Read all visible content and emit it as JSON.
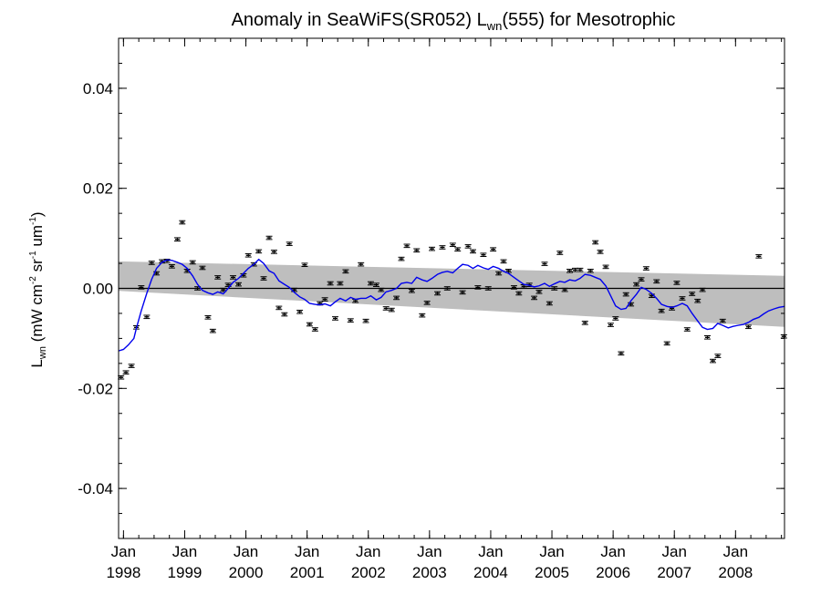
{
  "chart_data": {
    "type": "scatter",
    "title": "Anomaly in SeaWiFS(SR052) L",
    "title_sub": "wn",
    "title_suffix": "(555) for Mesotrophic",
    "ylabel": {
      "base": "L",
      "base_sub": "wn",
      "unit_open": " (mW cm",
      "sup1": "-2",
      "mid": " sr",
      "sup2": "-1",
      "end": " um",
      "sup3": "-1",
      "close": ")"
    },
    "x_range": [
      1997.92,
      2008.8
    ],
    "ylim": [
      -0.05,
      0.05
    ],
    "y_ticks": [
      {
        "value": 0.04,
        "label": "0.04"
      },
      {
        "value": 0.02,
        "label": "0.02"
      },
      {
        "value": 0.0,
        "label": "0.00"
      },
      {
        "value": -0.02,
        "label": "-0.02"
      },
      {
        "value": -0.04,
        "label": "-0.04"
      }
    ],
    "x_ticks": [
      {
        "value": 1998,
        "month": "Jan",
        "year": "1998"
      },
      {
        "value": 1999,
        "month": "Jan",
        "year": "1999"
      },
      {
        "value": 2000,
        "month": "Jan",
        "year": "2000"
      },
      {
        "value": 2001,
        "month": "Jan",
        "year": "2001"
      },
      {
        "value": 2002,
        "month": "Jan",
        "year": "2002"
      },
      {
        "value": 2003,
        "month": "Jan",
        "year": "2003"
      },
      {
        "value": 2004,
        "month": "Jan",
        "year": "2004"
      },
      {
        "value": 2005,
        "month": "Jan",
        "year": "2005"
      },
      {
        "value": 2006,
        "month": "Jan",
        "year": "2006"
      },
      {
        "value": 2007,
        "month": "Jan",
        "year": "2007"
      },
      {
        "value": 2008,
        "month": "Jan",
        "year": "2008"
      }
    ],
    "zero_line": 0.0,
    "confidence_band": {
      "start": {
        "x": 1997.92,
        "lower": -0.0005,
        "upper": 0.0054
      },
      "end": {
        "x": 2008.8,
        "lower": -0.0077,
        "upper": 0.0025
      },
      "color": "#bebebe"
    },
    "points": [
      [
        1997.96,
        -0.0178
      ],
      [
        1998.04,
        -0.0168
      ],
      [
        1998.13,
        -0.0155
      ],
      [
        1998.21,
        -0.0078
      ],
      [
        1998.29,
        0.0002
      ],
      [
        1998.38,
        -0.0057
      ],
      [
        1998.46,
        0.0051
      ],
      [
        1998.54,
        0.003
      ],
      [
        1998.63,
        0.0054
      ],
      [
        1998.71,
        0.0055
      ],
      [
        1998.79,
        0.0044
      ],
      [
        1998.88,
        0.0098
      ],
      [
        1998.96,
        0.0132
      ],
      [
        1999.04,
        0.0035
      ],
      [
        1999.13,
        0.0052
      ],
      [
        1999.21,
        0.0
      ],
      [
        1999.29,
        0.0041
      ],
      [
        1999.38,
        -0.0058
      ],
      [
        1999.46,
        -0.0085
      ],
      [
        1999.54,
        0.0022
      ],
      [
        1999.63,
        -0.0003
      ],
      [
        1999.71,
        0.0007
      ],
      [
        1999.79,
        0.0022
      ],
      [
        1999.88,
        0.0008
      ],
      [
        1999.96,
        0.0026
      ],
      [
        2000.04,
        0.0066
      ],
      [
        2000.13,
        0.0048
      ],
      [
        2000.21,
        0.0074
      ],
      [
        2000.29,
        0.002
      ],
      [
        2000.38,
        0.0101
      ],
      [
        2000.46,
        0.0073
      ],
      [
        2000.54,
        -0.0039
      ],
      [
        2000.63,
        -0.0052
      ],
      [
        2000.71,
        0.0089
      ],
      [
        2000.79,
        -0.0003
      ],
      [
        2000.88,
        -0.0047
      ],
      [
        2000.96,
        0.0047
      ],
      [
        2001.04,
        -0.0072
      ],
      [
        2001.13,
        -0.0082
      ],
      [
        2001.21,
        -0.003
      ],
      [
        2001.29,
        -0.0022
      ],
      [
        2001.38,
        0.001
      ],
      [
        2001.46,
        -0.006
      ],
      [
        2001.54,
        0.001
      ],
      [
        2001.63,
        0.0034
      ],
      [
        2001.71,
        -0.0064
      ],
      [
        2001.79,
        -0.0025
      ],
      [
        2001.88,
        0.0048
      ],
      [
        2001.96,
        -0.0065
      ],
      [
        2002.04,
        0.001
      ],
      [
        2002.13,
        0.0007
      ],
      [
        2002.21,
        -0.0003
      ],
      [
        2002.29,
        -0.004
      ],
      [
        2002.38,
        -0.0043
      ],
      [
        2002.46,
        -0.0019
      ],
      [
        2002.54,
        0.0059
      ],
      [
        2002.63,
        0.0085
      ],
      [
        2002.71,
        -0.0005
      ],
      [
        2002.79,
        0.0076
      ],
      [
        2002.88,
        -0.0054
      ],
      [
        2002.96,
        -0.0029
      ],
      [
        2003.04,
        0.0079
      ],
      [
        2003.13,
        -0.001
      ],
      [
        2003.21,
        0.0082
      ],
      [
        2003.29,
        0.0
      ],
      [
        2003.38,
        0.0087
      ],
      [
        2003.46,
        0.0078
      ],
      [
        2003.54,
        -0.0008
      ],
      [
        2003.63,
        0.0084
      ],
      [
        2003.71,
        0.0074
      ],
      [
        2003.79,
        0.0002
      ],
      [
        2003.88,
        0.0067
      ],
      [
        2003.96,
        0.0
      ],
      [
        2004.04,
        0.0078
      ],
      [
        2004.13,
        0.003
      ],
      [
        2004.21,
        0.0054
      ],
      [
        2004.29,
        0.0035
      ],
      [
        2004.38,
        0.0002
      ],
      [
        2004.46,
        -0.001
      ],
      [
        2004.54,
        0.0004
      ],
      [
        2004.63,
        0.0007
      ],
      [
        2004.71,
        -0.0019
      ],
      [
        2004.79,
        -0.0007
      ],
      [
        2004.88,
        0.0049
      ],
      [
        2004.96,
        -0.003
      ],
      [
        2005.04,
        0.0
      ],
      [
        2005.13,
        0.0071
      ],
      [
        2005.21,
        -0.0003
      ],
      [
        2005.29,
        0.0035
      ],
      [
        2005.38,
        0.0037
      ],
      [
        2005.46,
        0.0037
      ],
      [
        2005.54,
        -0.0069
      ],
      [
        2005.63,
        0.0035
      ],
      [
        2005.71,
        0.0092
      ],
      [
        2005.79,
        0.0073
      ],
      [
        2005.88,
        0.0043
      ],
      [
        2005.96,
        -0.0073
      ],
      [
        2006.04,
        -0.006
      ],
      [
        2006.13,
        -0.013
      ],
      [
        2006.21,
        -0.0012
      ],
      [
        2006.29,
        -0.0032
      ],
      [
        2006.38,
        0.0008
      ],
      [
        2006.46,
        0.0018
      ],
      [
        2006.54,
        0.004
      ],
      [
        2006.63,
        -0.0015
      ],
      [
        2006.71,
        0.0014
      ],
      [
        2006.79,
        -0.0045
      ],
      [
        2006.88,
        -0.011
      ],
      [
        2006.96,
        -0.004
      ],
      [
        2007.04,
        0.0011
      ],
      [
        2007.13,
        -0.002
      ],
      [
        2007.21,
        -0.0082
      ],
      [
        2007.29,
        -0.0011
      ],
      [
        2007.38,
        -0.0025
      ],
      [
        2007.46,
        -0.0003
      ],
      [
        2007.54,
        -0.0098
      ],
      [
        2007.63,
        -0.0145
      ],
      [
        2007.71,
        -0.0135
      ],
      [
        2007.79,
        -0.0065
      ],
      [
        2008.21,
        -0.0077
      ],
      [
        2008.38,
        0.0064
      ],
      [
        2008.79,
        -0.0096
      ]
    ],
    "smooth_line": {
      "color": "#0000ee",
      "points": [
        [
          1997.92,
          -0.0125
        ],
        [
          1998.0,
          -0.0122
        ],
        [
          1998.08,
          -0.0113
        ],
        [
          1998.17,
          -0.01
        ],
        [
          1998.21,
          -0.008
        ],
        [
          1998.29,
          -0.0045
        ],
        [
          1998.38,
          -0.001
        ],
        [
          1998.46,
          0.0018
        ],
        [
          1998.54,
          0.004
        ],
        [
          1998.63,
          0.0052
        ],
        [
          1998.71,
          0.0057
        ],
        [
          1998.79,
          0.0056
        ],
        [
          1998.88,
          0.0052
        ],
        [
          1998.96,
          0.0048
        ],
        [
          1999.04,
          0.004
        ],
        [
          1999.13,
          0.0025
        ],
        [
          1999.21,
          0.0008
        ],
        [
          1999.29,
          -0.0004
        ],
        [
          1999.38,
          -0.0009
        ],
        [
          1999.46,
          -0.0012
        ],
        [
          1999.54,
          -0.0007
        ],
        [
          1999.63,
          -0.0011
        ],
        [
          1999.71,
          0.0
        ],
        [
          1999.79,
          0.0012
        ],
        [
          1999.88,
          0.002
        ],
        [
          1999.96,
          0.003
        ],
        [
          2000.04,
          0.004
        ],
        [
          2000.13,
          0.0048
        ],
        [
          2000.21,
          0.0058
        ],
        [
          2000.29,
          0.005
        ],
        [
          2000.38,
          0.0035
        ],
        [
          2000.46,
          0.003
        ],
        [
          2000.54,
          0.0015
        ],
        [
          2000.63,
          0.0008
        ],
        [
          2000.71,
          0.0002
        ],
        [
          2000.79,
          -0.0008
        ],
        [
          2000.88,
          -0.0017
        ],
        [
          2000.96,
          -0.0022
        ],
        [
          2001.04,
          -0.003
        ],
        [
          2001.13,
          -0.0032
        ],
        [
          2001.21,
          -0.0033
        ],
        [
          2001.29,
          -0.0031
        ],
        [
          2001.38,
          -0.0035
        ],
        [
          2001.46,
          -0.0027
        ],
        [
          2001.54,
          -0.002
        ],
        [
          2001.63,
          -0.0025
        ],
        [
          2001.71,
          -0.0018
        ],
        [
          2001.79,
          -0.0022
        ],
        [
          2001.88,
          -0.002
        ],
        [
          2001.96,
          -0.002
        ],
        [
          2002.04,
          -0.0015
        ],
        [
          2002.13,
          -0.0023
        ],
        [
          2002.21,
          -0.0018
        ],
        [
          2002.29,
          -0.0007
        ],
        [
          2002.38,
          -0.0004
        ],
        [
          2002.46,
          0.0
        ],
        [
          2002.54,
          0.001
        ],
        [
          2002.63,
          0.0012
        ],
        [
          2002.71,
          0.001
        ],
        [
          2002.79,
          0.0022
        ],
        [
          2002.88,
          0.0017
        ],
        [
          2002.96,
          0.0014
        ],
        [
          2003.04,
          0.002
        ],
        [
          2003.13,
          0.0028
        ],
        [
          2003.21,
          0.0032
        ],
        [
          2003.29,
          0.0034
        ],
        [
          2003.38,
          0.0031
        ],
        [
          2003.46,
          0.004
        ],
        [
          2003.54,
          0.0048
        ],
        [
          2003.63,
          0.0046
        ],
        [
          2003.71,
          0.004
        ],
        [
          2003.79,
          0.0046
        ],
        [
          2003.88,
          0.0041
        ],
        [
          2003.96,
          0.0038
        ],
        [
          2004.04,
          0.0044
        ],
        [
          2004.13,
          0.004
        ],
        [
          2004.21,
          0.0034
        ],
        [
          2004.29,
          0.003
        ],
        [
          2004.38,
          0.0022
        ],
        [
          2004.46,
          0.0015
        ],
        [
          2004.54,
          0.0008
        ],
        [
          2004.63,
          0.0006
        ],
        [
          2004.71,
          0.0003
        ],
        [
          2004.79,
          0.0005
        ],
        [
          2004.88,
          0.001
        ],
        [
          2004.96,
          0.0004
        ],
        [
          2005.04,
          0.0009
        ],
        [
          2005.13,
          0.0014
        ],
        [
          2005.21,
          0.0012
        ],
        [
          2005.29,
          0.0017
        ],
        [
          2005.38,
          0.0015
        ],
        [
          2005.46,
          0.002
        ],
        [
          2005.54,
          0.0028
        ],
        [
          2005.63,
          0.0026
        ],
        [
          2005.71,
          0.0022
        ],
        [
          2005.79,
          0.0018
        ],
        [
          2005.88,
          0.0005
        ],
        [
          2005.96,
          -0.0015
        ],
        [
          2006.04,
          -0.0035
        ],
        [
          2006.13,
          -0.0042
        ],
        [
          2006.21,
          -0.004
        ],
        [
          2006.29,
          -0.0025
        ],
        [
          2006.38,
          -0.0012
        ],
        [
          2006.46,
          0.0002
        ],
        [
          2006.54,
          -0.0002
        ],
        [
          2006.63,
          -0.001
        ],
        [
          2006.71,
          -0.002
        ],
        [
          2006.79,
          -0.0032
        ],
        [
          2006.88,
          -0.0036
        ],
        [
          2006.96,
          -0.0038
        ],
        [
          2007.04,
          -0.0035
        ],
        [
          2007.13,
          -0.003
        ],
        [
          2007.21,
          -0.0035
        ],
        [
          2007.29,
          -0.005
        ],
        [
          2007.38,
          -0.0065
        ],
        [
          2007.46,
          -0.0078
        ],
        [
          2007.54,
          -0.0082
        ],
        [
          2007.63,
          -0.008
        ],
        [
          2007.71,
          -0.007
        ],
        [
          2007.79,
          -0.0074
        ],
        [
          2007.88,
          -0.0079
        ],
        [
          2007.96,
          -0.0076
        ],
        [
          2008.04,
          -0.0074
        ],
        [
          2008.13,
          -0.0072
        ],
        [
          2008.21,
          -0.0068
        ],
        [
          2008.29,
          -0.0062
        ],
        [
          2008.38,
          -0.0058
        ],
        [
          2008.46,
          -0.0051
        ],
        [
          2008.54,
          -0.0045
        ],
        [
          2008.63,
          -0.0041
        ],
        [
          2008.71,
          -0.0038
        ],
        [
          2008.8,
          -0.0036
        ]
      ]
    }
  }
}
